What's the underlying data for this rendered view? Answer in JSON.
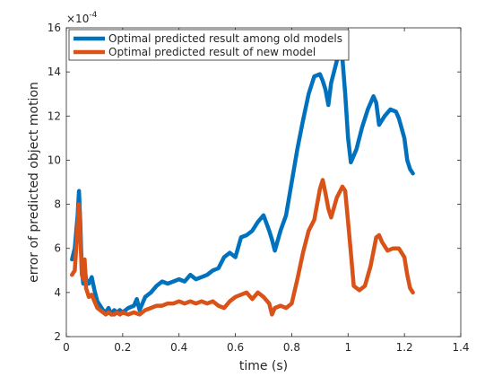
{
  "chart_data": {
    "type": "line",
    "xlabel": "time (s)",
    "ylabel": "error of predicted object motion",
    "y_multiplier": "×10",
    "y_exponent": "-4",
    "xlim": [
      0,
      1.4
    ],
    "ylim": [
      2,
      16
    ],
    "xticks": [
      "0",
      "0.2",
      "0.4",
      "0.6",
      "0.8",
      "1",
      "1.2",
      "1.4"
    ],
    "yticks": [
      "2",
      "4",
      "6",
      "8",
      "10",
      "12",
      "14",
      "16"
    ],
    "grid": false,
    "legend_position": "top-left",
    "series": [
      {
        "name": "Optimal predicted result among old models",
        "color": "#0072BD",
        "x": [
          0.02,
          0.03,
          0.04,
          0.045,
          0.05,
          0.055,
          0.06,
          0.065,
          0.07,
          0.08,
          0.09,
          0.1,
          0.11,
          0.12,
          0.13,
          0.14,
          0.15,
          0.16,
          0.17,
          0.18,
          0.19,
          0.2,
          0.22,
          0.24,
          0.25,
          0.26,
          0.28,
          0.3,
          0.32,
          0.34,
          0.36,
          0.38,
          0.4,
          0.42,
          0.44,
          0.46,
          0.48,
          0.5,
          0.52,
          0.54,
          0.56,
          0.58,
          0.6,
          0.62,
          0.64,
          0.66,
          0.68,
          0.7,
          0.72,
          0.73,
          0.74,
          0.76,
          0.78,
          0.8,
          0.82,
          0.84,
          0.86,
          0.88,
          0.9,
          0.91,
          0.92,
          0.93,
          0.94,
          0.96,
          0.97,
          0.98,
          0.99,
          1.0,
          1.01,
          1.02,
          1.03,
          1.05,
          1.07,
          1.09,
          1.1,
          1.11,
          1.13,
          1.15,
          1.17,
          1.18,
          1.2,
          1.21,
          1.22,
          1.23
        ],
        "y": [
          5.5,
          6.0,
          7.5,
          8.6,
          7.0,
          5.0,
          4.4,
          5.2,
          4.6,
          4.4,
          4.7,
          4.1,
          3.6,
          3.4,
          3.2,
          3.1,
          3.3,
          3.0,
          3.2,
          3.1,
          3.2,
          3.1,
          3.3,
          3.4,
          3.7,
          3.2,
          3.8,
          4.0,
          4.3,
          4.5,
          4.4,
          4.5,
          4.6,
          4.5,
          4.8,
          4.6,
          4.7,
          4.8,
          5.0,
          5.1,
          5.6,
          5.8,
          5.6,
          6.5,
          6.6,
          6.8,
          7.2,
          7.5,
          6.8,
          6.4,
          5.9,
          6.8,
          7.5,
          9.0,
          10.5,
          11.8,
          13.0,
          13.8,
          13.9,
          13.6,
          13.2,
          12.5,
          13.5,
          14.5,
          14.8,
          14.6,
          13.0,
          11.0,
          9.9,
          10.2,
          10.5,
          11.5,
          12.3,
          12.9,
          12.6,
          11.6,
          12.0,
          12.3,
          12.2,
          11.9,
          11.0,
          10.0,
          9.6,
          9.4
        ]
      },
      {
        "name": "Optimal predicted result of new model",
        "color": "#D95319",
        "x": [
          0.02,
          0.03,
          0.04,
          0.045,
          0.05,
          0.055,
          0.06,
          0.065,
          0.07,
          0.08,
          0.09,
          0.1,
          0.11,
          0.12,
          0.13,
          0.14,
          0.15,
          0.16,
          0.17,
          0.18,
          0.19,
          0.2,
          0.22,
          0.24,
          0.26,
          0.28,
          0.3,
          0.32,
          0.34,
          0.36,
          0.38,
          0.4,
          0.42,
          0.44,
          0.46,
          0.48,
          0.5,
          0.52,
          0.54,
          0.56,
          0.58,
          0.6,
          0.62,
          0.64,
          0.66,
          0.68,
          0.7,
          0.72,
          0.73,
          0.74,
          0.76,
          0.78,
          0.8,
          0.82,
          0.84,
          0.86,
          0.88,
          0.9,
          0.91,
          0.92,
          0.93,
          0.94,
          0.96,
          0.98,
          0.99,
          1.0,
          1.01,
          1.02,
          1.04,
          1.06,
          1.08,
          1.1,
          1.11,
          1.12,
          1.14,
          1.16,
          1.18,
          1.2,
          1.21,
          1.22,
          1.23
        ],
        "y": [
          4.8,
          5.0,
          7.0,
          8.0,
          6.5,
          4.8,
          4.6,
          5.5,
          4.2,
          3.8,
          3.9,
          3.6,
          3.3,
          3.2,
          3.1,
          3.0,
          3.1,
          3.0,
          3.0,
          3.1,
          3.0,
          3.1,
          3.0,
          3.1,
          3.0,
          3.2,
          3.3,
          3.4,
          3.4,
          3.5,
          3.5,
          3.6,
          3.5,
          3.6,
          3.5,
          3.6,
          3.5,
          3.6,
          3.4,
          3.3,
          3.6,
          3.8,
          3.9,
          4.0,
          3.7,
          4.0,
          3.8,
          3.5,
          3.0,
          3.3,
          3.4,
          3.3,
          3.5,
          4.6,
          5.8,
          6.8,
          7.3,
          8.7,
          9.1,
          8.5,
          7.8,
          7.4,
          8.3,
          8.8,
          8.6,
          7.2,
          5.8,
          4.3,
          4.1,
          4.3,
          5.2,
          6.5,
          6.6,
          6.3,
          5.9,
          6.0,
          6.0,
          5.6,
          4.8,
          4.2,
          4.0
        ]
      }
    ]
  }
}
